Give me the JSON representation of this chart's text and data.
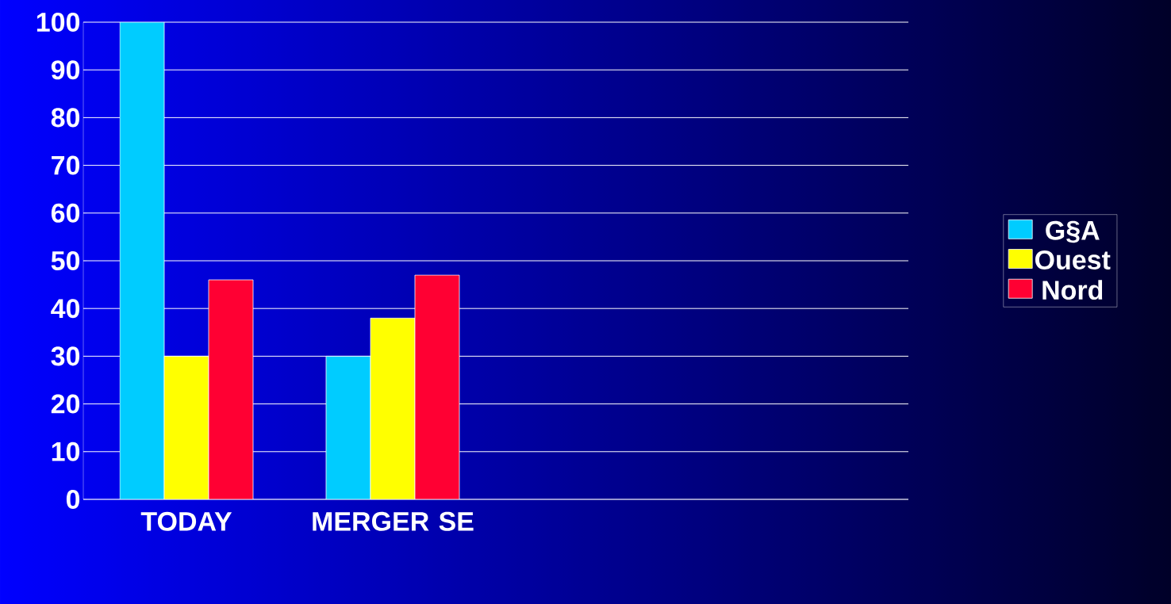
{
  "chart_data": {
    "type": "bar",
    "categories": [
      "TODAY",
      "MERGER SE",
      null,
      null
    ],
    "series": [
      {
        "name": "G§A",
        "color": "#00ccff",
        "values": [
          100,
          30,
          null,
          null
        ]
      },
      {
        "name": "Ouest",
        "color": "#ffff00",
        "values": [
          30,
          38,
          null,
          null
        ]
      },
      {
        "name": "Nord",
        "color": "#ff0033",
        "values": [
          46,
          47,
          null,
          null
        ]
      }
    ],
    "ylim": [
      0,
      100
    ],
    "yticks": [
      0,
      10,
      20,
      30,
      40,
      50,
      60,
      70,
      80,
      90,
      100
    ],
    "grid": "y",
    "legend": "right"
  }
}
